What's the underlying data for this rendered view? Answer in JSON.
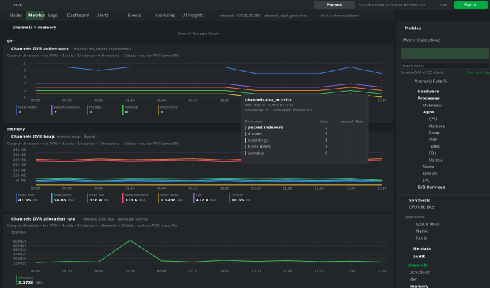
{
  "topbar": {
    "space": "local",
    "status": "Paused",
    "range": "8/17/26 • 07:00 → 13:00 PDT",
    "duration": "5h 59min 59s",
    "live": "Live",
    "signin": "Sign in",
    "tabs": [
      "Nodes",
      "Metrics",
      "Logs",
      "Dashboard",
      "Alerts",
      "Events",
      "Anomalies",
      "AI Insights"
    ],
    "room_tabs": [
      "channels (172.31.31.185)",
      "channels_stuck_goroutines",
      "local-custom-dashboard"
    ]
  },
  "breadcrumb": "channels > memory",
  "expand": "Expand - Compare Periods",
  "section_dvr": "dvr",
  "section_memory": "memory",
  "charts": [
    {
      "type": "line",
      "title": "Channels DVR active work",
      "context": "channels.dvr_activity • [goroutines]",
      "groupby": "Group by dimension • the AVG() • 1 node • 1 instance • 6 dimensions • 2 labels • each as AVG() every 60s",
      "x": [
        "07:00",
        "07:30",
        "08:00",
        "08:30",
        "09:00",
        "09:30",
        "10:00",
        "10:30",
        "11:00",
        "11:30",
        "12:00",
        "12:30"
      ],
      "ylim": [
        0,
        11
      ],
      "yticks": [
        0,
        2,
        4,
        6,
        8,
        10
      ],
      "series": [
        {
          "name": "tuner reads",
          "color": "#3f7ee8",
          "values": [
            9,
            9,
            8,
            9,
            9,
            9,
            9,
            7,
            7,
            7,
            9,
            7
          ],
          "value": 1
        },
        {
          "name": "packet indexers",
          "color": "#8f5ce0",
          "values": [
            4,
            4,
            4,
            4,
            4,
            4,
            4,
            3,
            3,
            3,
            4,
            3
          ],
          "value": 2
        },
        {
          "name": "ffprobe",
          "color": "#e8743f",
          "values": [
            3,
            3,
            3,
            3,
            3,
            3,
            3,
            2,
            2,
            2,
            3,
            2
          ],
          "value": 1
        },
        {
          "name": "comskip",
          "color": "#3fbf5a",
          "values": [
            2,
            2,
            2,
            2,
            2,
            2,
            2,
            1,
            1,
            1,
            2,
            1
          ],
          "value": 0
        },
        {
          "name": "recordings",
          "color": "#e8c23f",
          "values": [
            1,
            1,
            1,
            1,
            1,
            1,
            1,
            0,
            0,
            0,
            1,
            0
          ],
          "value": 1
        }
      ]
    },
    {
      "type": "line",
      "title": "Channels DVR heap",
      "context": "channels.heap • [bytes]",
      "groupby": "Group by dimension • the AVG() • 1 node • 1 instance • 7 dimensions • 2 labels • each as AVG() every 60s",
      "x": [
        "07:00",
        "07:30",
        "08:00",
        "08:30",
        "09:00",
        "09:30",
        "10:00",
        "10:30",
        "11:00",
        "11:30",
        "12:00",
        "12:30"
      ],
      "ylim": [
        0,
        470
      ],
      "yticks": [
        {
          "value": 64,
          "label": "64 MiB"
        },
        {
          "value": 128,
          "label": "128 MiB"
        },
        {
          "value": 192,
          "label": "192 MiB"
        },
        {
          "value": 256,
          "label": "256 MiB"
        },
        {
          "value": 320,
          "label": "320 MiB"
        },
        {
          "value": 384,
          "label": "384 MiB"
        },
        {
          "value": 448,
          "label": "448 MiB"
        }
      ],
      "series": [
        {
          "name": "heap alloc",
          "color": "#3f7ee8",
          "values": [
            45,
            60,
            40,
            55,
            50,
            42,
            58,
            44,
            52,
            47,
            55,
            43
          ],
          "value": 43.65,
          "unit": "MiB"
        },
        {
          "name": "heap inuse",
          "color": "#2fb7d6",
          "values": [
            58,
            72,
            52,
            66,
            62,
            55,
            70,
            56,
            64,
            58,
            66,
            56
          ],
          "value": 56.05,
          "unit": "MiB"
        },
        {
          "name": "heap idle",
          "color": "#e8743f",
          "values": [
            330,
            320,
            335,
            325,
            330,
            338,
            322,
            336,
            328,
            334,
            326,
            338
          ],
          "value": 338.4,
          "unit": "MiB"
        },
        {
          "name": "heap released",
          "color": "#e84f6a",
          "values": [
            310,
            300,
            316,
            305,
            312,
            318,
            302,
            315,
            309,
            314,
            306,
            318
          ],
          "value": 318.6,
          "unit": "MiB"
        },
        {
          "name": "stack inuse",
          "color": "#e8c23f",
          "values": [
            1.6,
            1.6,
            1.6,
            1.6,
            1.6,
            1.6,
            1.6,
            1.6,
            1.6,
            1.6,
            1.6,
            1.6
          ],
          "value": 1.5938,
          "unit": "MiB"
        },
        {
          "name": "sys",
          "color": "#8f5ce0",
          "values": [
            412,
            412,
            412,
            412,
            412,
            412,
            412,
            412,
            412,
            412,
            412,
            412
          ],
          "value": 412.8,
          "unit": "MiB"
        },
        {
          "name": "next gc",
          "color": "#3fbf5a",
          "values": [
            80,
            88,
            76,
            84,
            82,
            78,
            86,
            80,
            84,
            79,
            85,
            60
          ],
          "value": 60.65,
          "unit": "MiB"
        }
      ]
    },
    {
      "type": "line",
      "title": "Channels DVR allocation rate",
      "context": "channels.alloc_rate • [bytes per second]",
      "groupby": "Group by dimension • the AVG() • 1 node • 1 instance • 1 dimension • 2 labels • each as AVG() every 60s",
      "x": [
        "07:00",
        "07:30",
        "08:00",
        "08:30",
        "09:00",
        "09:30",
        "10:00",
        "10:30",
        "11:00",
        "11:30",
        "12:00",
        "12:30"
      ],
      "ylim": [
        0,
        136
      ],
      "yticks": [
        {
          "value": 16,
          "label": "16 MB/s"
        },
        {
          "value": 32,
          "label": "32 MB/s"
        },
        {
          "value": 48,
          "label": "48 MB/s"
        },
        {
          "value": 64,
          "label": "64 MB/s"
        },
        {
          "value": 80,
          "label": "80 MB/s"
        },
        {
          "value": 96,
          "label": "96 MB/s"
        },
        {
          "value": 128,
          "label": "128 MB/s"
        }
      ],
      "series": [
        {
          "name": "allocated",
          "color": "#3fbf5a",
          "values": [
            18,
            22,
            20,
            100,
            24,
            20,
            26,
            22,
            25,
            21,
            23,
            20
          ],
          "value": 5.3726,
          "unit": "MB/s"
        }
      ]
    }
  ],
  "tooltip": {
    "title": "channels.dvr_activity",
    "date": "Mon, Aug 17, 2026 • 10:27:48",
    "granularity": "Granularity: 5s",
    "view": "View point: average 60s",
    "columns": [
      "Dimension",
      "Value",
      "Anomaly%",
      "Info"
    ],
    "rows": [
      {
        "name": "packet indexers",
        "value": 2,
        "anomaly": "-"
      },
      {
        "name": "ffprobe",
        "value": 1,
        "anomaly": "-"
      },
      {
        "name": "recordings",
        "value": 1,
        "anomaly": "-"
      },
      {
        "name": "tuner reads",
        "value": 1,
        "anomaly": "-"
      },
      {
        "name": "comskip",
        "value": 0,
        "anomaly": "-"
      }
    ]
  },
  "sidebar": {
    "title": "Metrics",
    "correlations": "Metric Correlations",
    "search": "Search charts",
    "showing": "Showing 533 of 533 charts",
    "add": "Add more charts",
    "anomaly": "Anomaly Rate %",
    "tree": [
      {
        "label": "Hardware"
      },
      {
        "label": "Processes",
        "children": [
          {
            "label": "Overview"
          },
          {
            "label": "Apps",
            "children": [
              {
                "label": "CPU"
              },
              {
                "label": "Memory"
              },
              {
                "label": "Swap"
              },
              {
                "label": "Disk"
              },
              {
                "label": "Tasks"
              },
              {
                "label": "FDs"
              },
              {
                "label": "Uptime"
              }
            ]
          },
          {
            "label": "Users"
          },
          {
            "label": "Groups"
          },
          {
            "label": "IPC"
          }
        ]
      },
      {
        "label": "O/S Services"
      }
    ],
    "synthetic": "Synthetic",
    "jitter": "CPU Idle Jitter",
    "applications": "Applications",
    "apps": [
      "caddy_local",
      "Nginx",
      "Redis"
    ],
    "netdata": "Netdata",
    "audit": "audit",
    "channels": "channels",
    "channel_items": [
      "scheduler",
      "dvr",
      "memory"
    ]
  }
}
